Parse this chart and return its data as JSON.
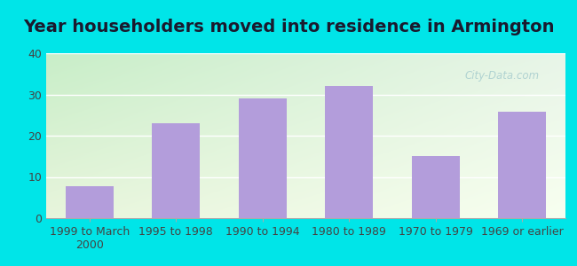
{
  "title": "Year householders moved into residence in Armington",
  "categories": [
    "1999 to March\n2000",
    "1995 to 1998",
    "1990 to 1994",
    "1980 to 1989",
    "1970 to 1979",
    "1969 or earlier"
  ],
  "values": [
    7.7,
    23.1,
    29.0,
    32.0,
    15.0,
    25.8
  ],
  "bar_color": "#b39ddb",
  "background_outer": "#00e5e8",
  "background_grad_topleft": "#c8eec8",
  "background_grad_right": "#e8f5e8",
  "background_grad_bottom": "#f0f5e0",
  "ylim": [
    0,
    40
  ],
  "yticks": [
    0,
    10,
    20,
    30,
    40
  ],
  "grid_color": "#ffffff",
  "title_fontsize": 14,
  "tick_fontsize": 9,
  "watermark_text": "City-Data.com"
}
